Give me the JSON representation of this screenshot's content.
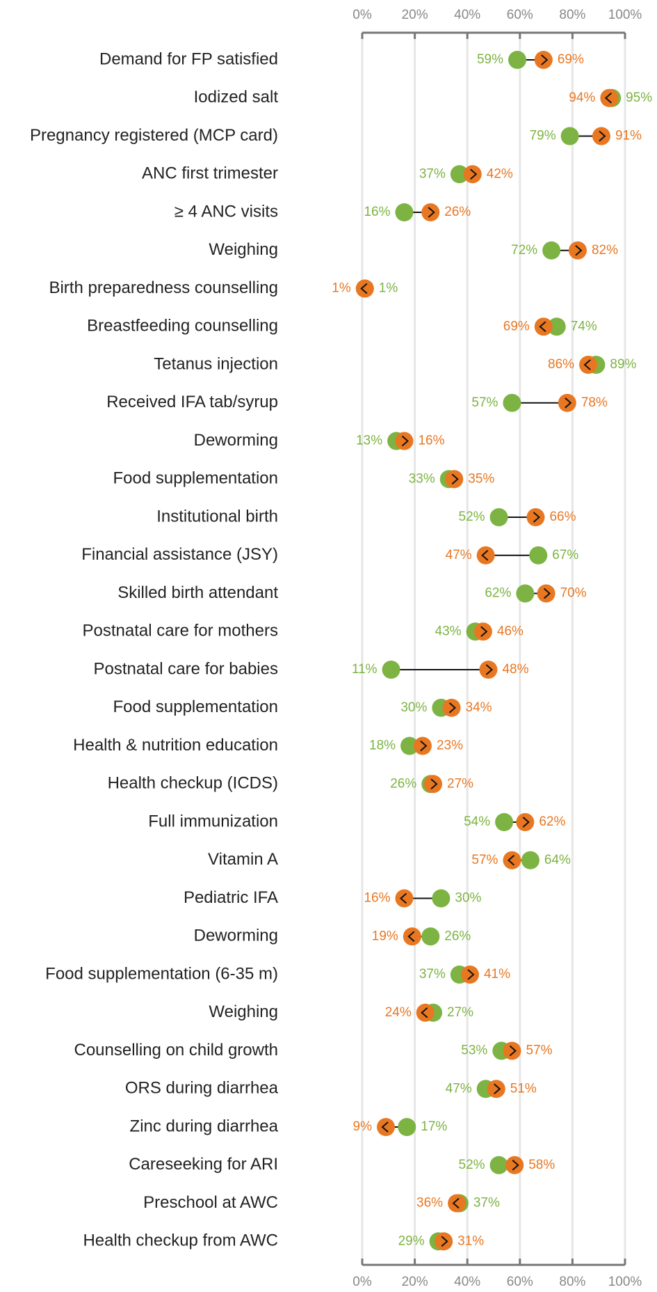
{
  "chart_data": {
    "type": "dumbbell",
    "categories": [
      "Demand for FP satisfied",
      "Iodized salt",
      "Pregnancy registered (MCP card)",
      "ANC first trimester",
      "≥ 4 ANC visits",
      "Weighing",
      "Birth preparedness counselling",
      "Breastfeeding counselling",
      "Tetanus injection",
      "Received IFA tab/syrup",
      "Deworming",
      "Food supplementation",
      "Institutional birth",
      "Financial assistance (JSY)",
      "Skilled birth attendant",
      "Postnatal care for mothers",
      "Postnatal care for babies",
      "Food supplementation",
      "Health & nutrition education",
      "Health checkup (ICDS)",
      "Full immunization",
      "Vitamin A",
      "Pediatric IFA",
      "Deworming",
      "Food supplementation (6-35 m)",
      "Weighing",
      "Counselling on child growth",
      "ORS during diarrhea",
      "Zinc during diarrhea",
      "Careseeking for ARI",
      "Preschool at AWC",
      "Health checkup from AWC"
    ],
    "series": [
      {
        "color": "#7cb342",
        "values": [
          59,
          95,
          79,
          37,
          16,
          72,
          1,
          74,
          89,
          57,
          13,
          33,
          52,
          67,
          62,
          43,
          11,
          30,
          18,
          26,
          54,
          64,
          30,
          26,
          37,
          27,
          53,
          47,
          17,
          52,
          37,
          29
        ],
        "value_labels": [
          "59%",
          "95%",
          "79%",
          "37%",
          "16%",
          "72%",
          "1%",
          "74%",
          "89%",
          "57%",
          "13%",
          "33%",
          "52%",
          "67%",
          "62%",
          "43%",
          "11%",
          "30%",
          "18%",
          "26%",
          "54%",
          "64%",
          "30%",
          "26%",
          "37%",
          "27%",
          "53%",
          "47%",
          "17%",
          "52%",
          "37%",
          "29%"
        ]
      },
      {
        "color": "#e87722",
        "values": [
          69,
          94,
          91,
          42,
          26,
          82,
          1,
          69,
          86,
          78,
          16,
          35,
          66,
          47,
          70,
          46,
          48,
          34,
          23,
          27,
          62,
          57,
          16,
          19,
          41,
          24,
          57,
          51,
          9,
          58,
          36,
          31
        ],
        "value_labels": [
          "69%",
          "94%",
          "91%",
          "42%",
          "26%",
          "82%",
          "1%",
          "69%",
          "86%",
          "78%",
          "16%",
          "35%",
          "66%",
          "47%",
          "70%",
          "46%",
          "48%",
          "34%",
          "23%",
          "27%",
          "62%",
          "57%",
          "16%",
          "19%",
          "41%",
          "24%",
          "57%",
          "51%",
          "9%",
          "58%",
          "36%",
          "31%"
        ]
      }
    ],
    "xlim": [
      0,
      100
    ],
    "xticks": [
      {
        "value": 0,
        "label": "0%"
      },
      {
        "value": 20,
        "label": "20%"
      },
      {
        "value": 40,
        "label": "40%"
      },
      {
        "value": 60,
        "label": "60%"
      },
      {
        "value": 80,
        "label": "80%"
      },
      {
        "value": 100,
        "label": "100%"
      }
    ],
    "grid": true
  }
}
